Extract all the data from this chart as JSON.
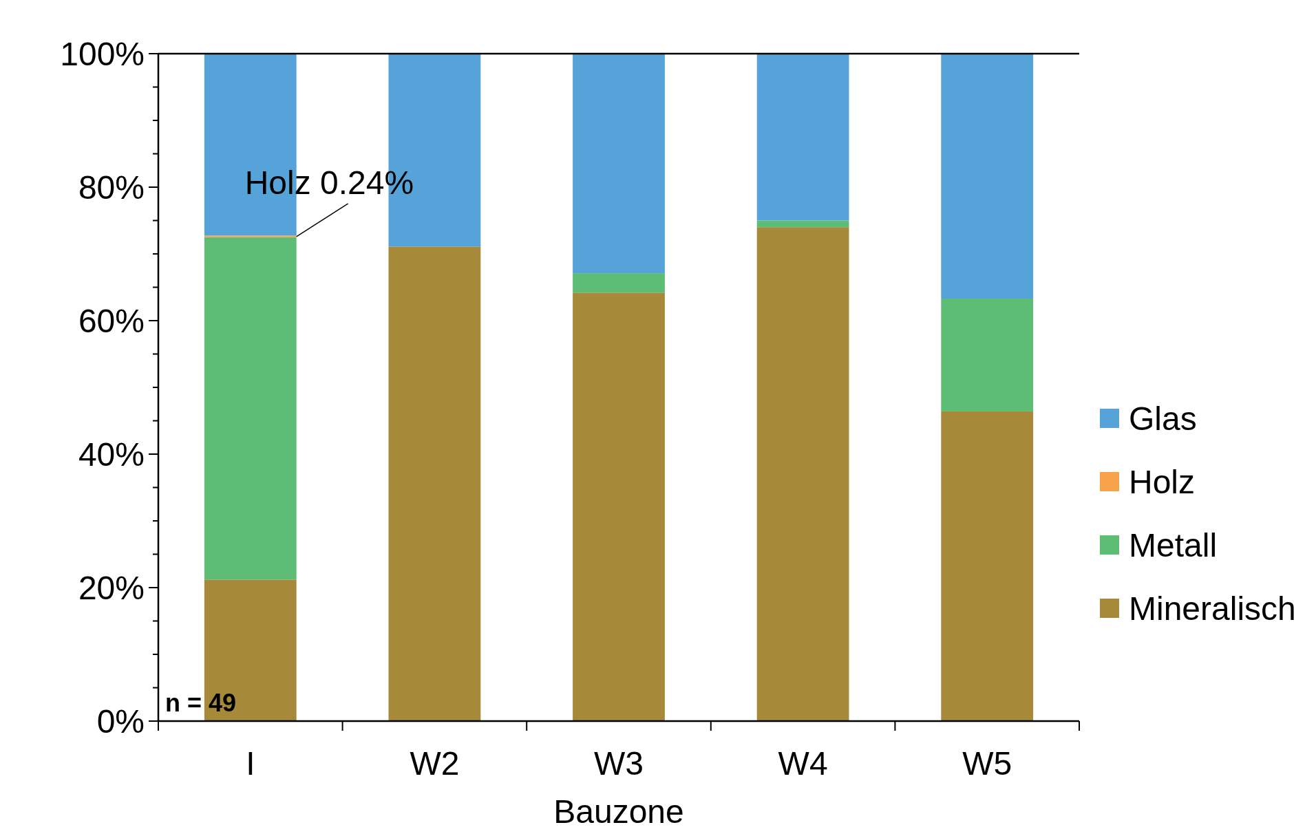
{
  "chart_data": {
    "type": "bar",
    "stacked": true,
    "xlabel": "Bauzone",
    "categories": [
      "I",
      "W2",
      "W3",
      "W4",
      "W5"
    ],
    "series": [
      {
        "name": "Mineralisch",
        "color": "#a68a3a",
        "values": [
          21.2,
          71.1,
          64.2,
          74.0,
          46.4
        ]
      },
      {
        "name": "Metall",
        "color": "#5ebd75",
        "values": [
          51.3,
          0,
          2.9,
          1.0,
          16.9
        ]
      },
      {
        "name": "Holz",
        "color": "#f7a24a",
        "values": [
          0.24,
          0,
          0,
          0,
          0
        ]
      },
      {
        "name": "Glas",
        "color": "#56a3da",
        "values": [
          27.26,
          28.9,
          32.9,
          25.0,
          36.7
        ]
      }
    ],
    "ylim": [
      0,
      100
    ],
    "yticks": [
      {
        "value": 0,
        "label": "0%"
      },
      {
        "value": 5,
        "label": null
      },
      {
        "value": 10,
        "label": null
      },
      {
        "value": 15,
        "label": null
      },
      {
        "value": 20,
        "label": "20%"
      },
      {
        "value": 25,
        "label": null
      },
      {
        "value": 30,
        "label": null
      },
      {
        "value": 35,
        "label": null
      },
      {
        "value": 40,
        "label": "40%"
      },
      {
        "value": 45,
        "label": null
      },
      {
        "value": 50,
        "label": null
      },
      {
        "value": 55,
        "label": null
      },
      {
        "value": 60,
        "label": "60%"
      },
      {
        "value": 65,
        "label": null
      },
      {
        "value": 70,
        "label": null
      },
      {
        "value": 75,
        "label": null
      },
      {
        "value": 80,
        "label": "80%"
      },
      {
        "value": 85,
        "label": null
      },
      {
        "value": 90,
        "label": null
      },
      {
        "value": 95,
        "label": null
      },
      {
        "value": 100,
        "label": "100%"
      }
    ],
    "legend": "right",
    "grid": false,
    "annotations": [
      {
        "text": "Holz 0.24%",
        "x": "I",
        "y": 72.6
      },
      "n = 49"
    ]
  }
}
